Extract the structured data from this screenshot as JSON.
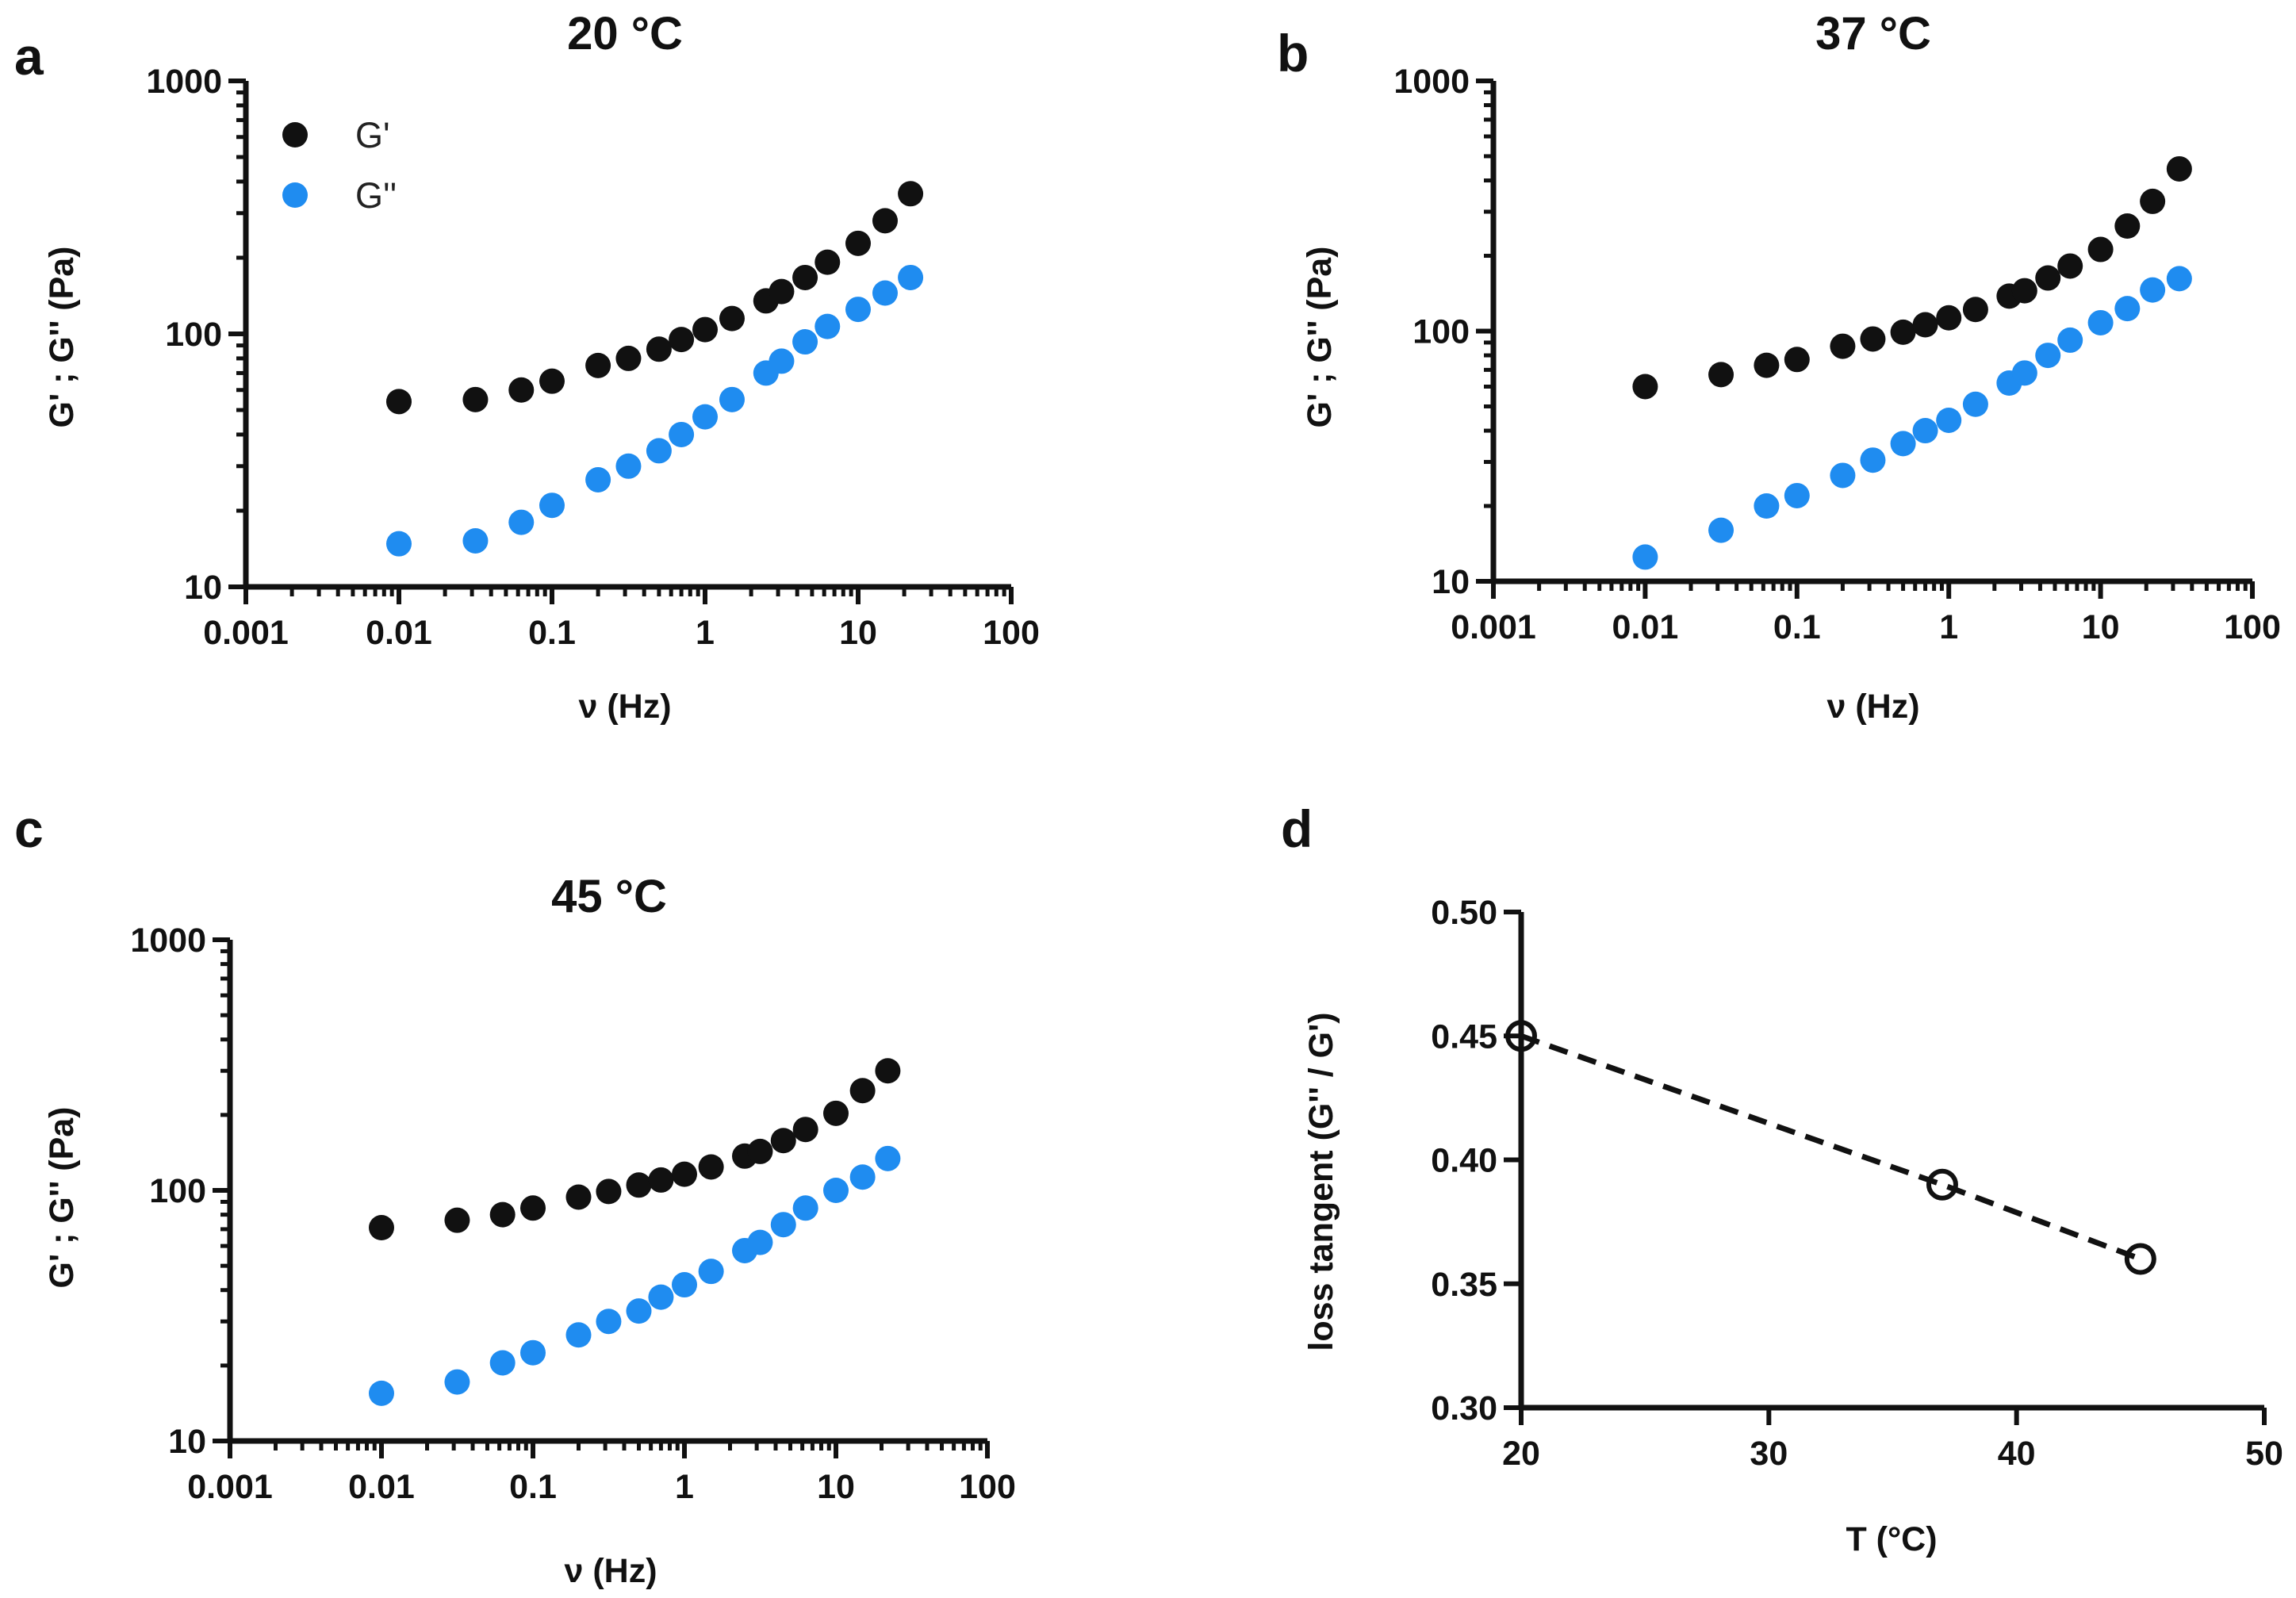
{
  "figure": {
    "panel_letters": [
      "a",
      "b",
      "c",
      "d"
    ],
    "colors": {
      "g_prime": "#111111",
      "g_double_prime": "#1f8cf0",
      "axis": "#111111"
    }
  },
  "chart_data": [
    {
      "panel": "a",
      "type": "scatter",
      "title": "20 °C",
      "xlabel": "ν (Hz)",
      "ylabel": "G' ; G'' (Pa)",
      "xscale": "log",
      "yscale": "log",
      "xlim": [
        0.001,
        100
      ],
      "ylim": [
        10,
        1000
      ],
      "xticks": [
        "0.001",
        "0.01",
        "0.1",
        "1",
        "10",
        "100"
      ],
      "yticks": [
        "10",
        "100",
        "1000"
      ],
      "legend": {
        "placement": "top-left",
        "entries": [
          "G'",
          "G''"
        ]
      },
      "series": [
        {
          "name": "G'",
          "color": "#111111",
          "x": [
            0.01,
            0.0316,
            0.063,
            0.1,
            0.2,
            0.316,
            0.5,
            0.7,
            1.0,
            1.5,
            2.5,
            3.16,
            4.5,
            6.3,
            10,
            15,
            22
          ],
          "y": [
            54,
            55,
            60,
            65,
            75,
            80,
            87,
            95,
            104,
            115,
            135,
            147,
            167,
            192,
            228,
            280,
            358
          ]
        },
        {
          "name": "G''",
          "color": "#1f8cf0",
          "x": [
            0.01,
            0.0316,
            0.063,
            0.1,
            0.2,
            0.316,
            0.5,
            0.7,
            1.0,
            1.5,
            2.5,
            3.16,
            4.5,
            6.3,
            10,
            15,
            22
          ],
          "y": [
            14.8,
            15.2,
            18,
            21,
            26.5,
            30,
            34.5,
            40,
            47,
            55,
            70,
            78,
            93,
            107,
            125,
            145,
            167
          ]
        }
      ]
    },
    {
      "panel": "b",
      "type": "scatter",
      "title": "37 °C",
      "xlabel": "ν (Hz)",
      "ylabel": "G' ; G'' (Pa)",
      "xscale": "log",
      "yscale": "log",
      "xlim": [
        0.001,
        100
      ],
      "ylim": [
        10,
        1000
      ],
      "xticks": [
        "0.001",
        "0.01",
        "0.1",
        "1",
        "10",
        "100"
      ],
      "yticks": [
        "10",
        "100",
        "1000"
      ],
      "series": [
        {
          "name": "G'",
          "color": "#111111",
          "x": [
            0.01,
            0.0316,
            0.063,
            0.1,
            0.2,
            0.316,
            0.5,
            0.7,
            1.0,
            1.5,
            2.5,
            3.16,
            4.5,
            6.3,
            10,
            15,
            22,
            33
          ],
          "y": [
            60,
            67,
            73,
            77,
            87,
            93,
            99,
            106,
            113,
            122,
            138,
            145,
            163,
            182,
            212,
            263,
            330,
            445
          ]
        },
        {
          "name": "G''",
          "color": "#1f8cf0",
          "x": [
            0.01,
            0.0316,
            0.063,
            0.1,
            0.2,
            0.316,
            0.5,
            0.7,
            1.0,
            1.5,
            2.5,
            3.16,
            4.5,
            6.3,
            10,
            15,
            22,
            33
          ],
          "y": [
            12.5,
            16,
            20,
            22,
            26.5,
            30.5,
            35.5,
            40,
            44,
            51,
            62,
            68,
            80,
            92,
            108,
            123,
            146,
            162
          ]
        }
      ]
    },
    {
      "panel": "c",
      "type": "scatter",
      "title": "45 °C",
      "xlabel": "ν (Hz)",
      "ylabel": "G' ; G'' (Pa)",
      "xscale": "log",
      "yscale": "log",
      "xlim": [
        0.001,
        100
      ],
      "ylim": [
        10,
        1000
      ],
      "xticks": [
        "0.001",
        "0.01",
        "0.1",
        "1",
        "10",
        "100"
      ],
      "yticks": [
        "10",
        "100",
        "1000"
      ],
      "series": [
        {
          "name": "G'",
          "color": "#111111",
          "x": [
            0.01,
            0.0316,
            0.063,
            0.1,
            0.2,
            0.316,
            0.5,
            0.7,
            1.0,
            1.5,
            2.5,
            3.16,
            4.5,
            6.3,
            10,
            15,
            22
          ],
          "y": [
            71,
            76,
            80,
            85,
            94,
            99,
            105,
            110,
            116,
            124,
            137,
            143,
            158,
            175,
            203,
            250,
            300
          ]
        },
        {
          "name": "G''",
          "color": "#1f8cf0",
          "x": [
            0.01,
            0.0316,
            0.063,
            0.1,
            0.2,
            0.316,
            0.5,
            0.7,
            1.0,
            1.5,
            2.5,
            3.16,
            4.5,
            6.3,
            10,
            15,
            22
          ],
          "y": [
            15.5,
            17.2,
            20.5,
            22.5,
            26.5,
            30,
            33,
            37.5,
            42,
            47.5,
            57.5,
            62,
            73,
            85,
            100,
            113,
            134
          ]
        }
      ]
    },
    {
      "panel": "d",
      "type": "line",
      "title": "",
      "xlabel": "T (°C)",
      "ylabel": "loss tangent  (G'' / G')",
      "xlim": [
        20,
        50
      ],
      "ylim": [
        0.3,
        0.5
      ],
      "xticks": [
        "20",
        "30",
        "40",
        "50"
      ],
      "yticks": [
        "0.30",
        "0.35",
        "0.40",
        "0.45",
        "0.50"
      ],
      "series": [
        {
          "name": "loss tangent",
          "style": "dashed line, open circle markers",
          "color": "#111111",
          "x": [
            20,
            37,
            45
          ],
          "y": [
            0.45,
            0.39,
            0.36
          ]
        }
      ]
    }
  ]
}
